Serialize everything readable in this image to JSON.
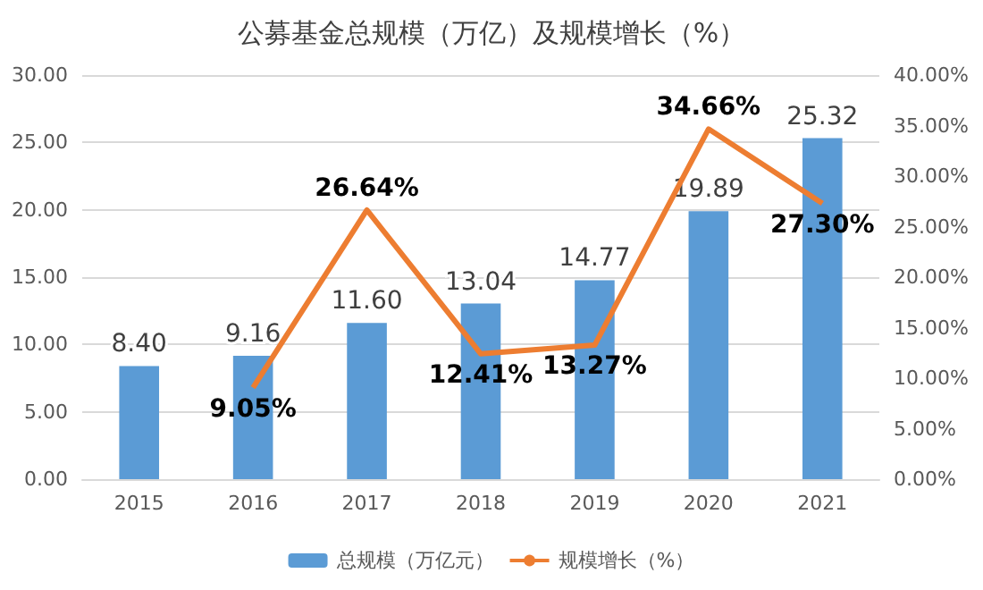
{
  "chart_data": {
    "type": "bar",
    "title": "公募基金总规模（万亿）及规模增长（%）",
    "categories": [
      "2015",
      "2016",
      "2017",
      "2018",
      "2019",
      "2020",
      "2021"
    ],
    "series": [
      {
        "name": "总规模（万亿元）",
        "color": "#5b9bd5",
        "values": [
          8.4,
          9.16,
          11.6,
          13.04,
          14.77,
          19.89,
          25.32
        ],
        "value_labels": [
          "8.40",
          "9.16",
          "11.60",
          "13.04",
          "14.77",
          "19.89",
          "25.32"
        ]
      },
      {
        "name": "规模增长（%）",
        "type": "line",
        "axis": "y2",
        "color": "#ed7d31",
        "values": [
          null,
          9.05,
          26.64,
          12.41,
          13.27,
          34.66,
          27.3
        ],
        "value_labels": [
          null,
          "9.05%",
          "26.64%",
          "12.41%",
          "13.27%",
          "34.66%",
          "27.30%"
        ]
      }
    ],
    "ylim": [
      0,
      30
    ],
    "yticks": [
      {
        "value": 0,
        "label": "0.00"
      },
      {
        "value": 5,
        "label": "5.00"
      },
      {
        "value": 10,
        "label": "10.00"
      },
      {
        "value": 15,
        "label": "15.00"
      },
      {
        "value": 20,
        "label": "20.00"
      },
      {
        "value": 25,
        "label": "25.00"
      },
      {
        "value": 30,
        "label": "30.00"
      }
    ],
    "y2lim": [
      0,
      40
    ],
    "y2ticks": [
      {
        "value": 0,
        "label": "0.00%"
      },
      {
        "value": 5,
        "label": "5.00%"
      },
      {
        "value": 10,
        "label": "10.00%"
      },
      {
        "value": 15,
        "label": "15.00%"
      },
      {
        "value": 20,
        "label": "20.00%"
      },
      {
        "value": 25,
        "label": "25.00%"
      },
      {
        "value": 30,
        "label": "30.00%"
      },
      {
        "value": 35,
        "label": "35.00%"
      },
      {
        "value": 40,
        "label": "40.00%"
      }
    ],
    "grid": "y",
    "legend": "bottom",
    "marker": "none",
    "line_style": "solid"
  }
}
